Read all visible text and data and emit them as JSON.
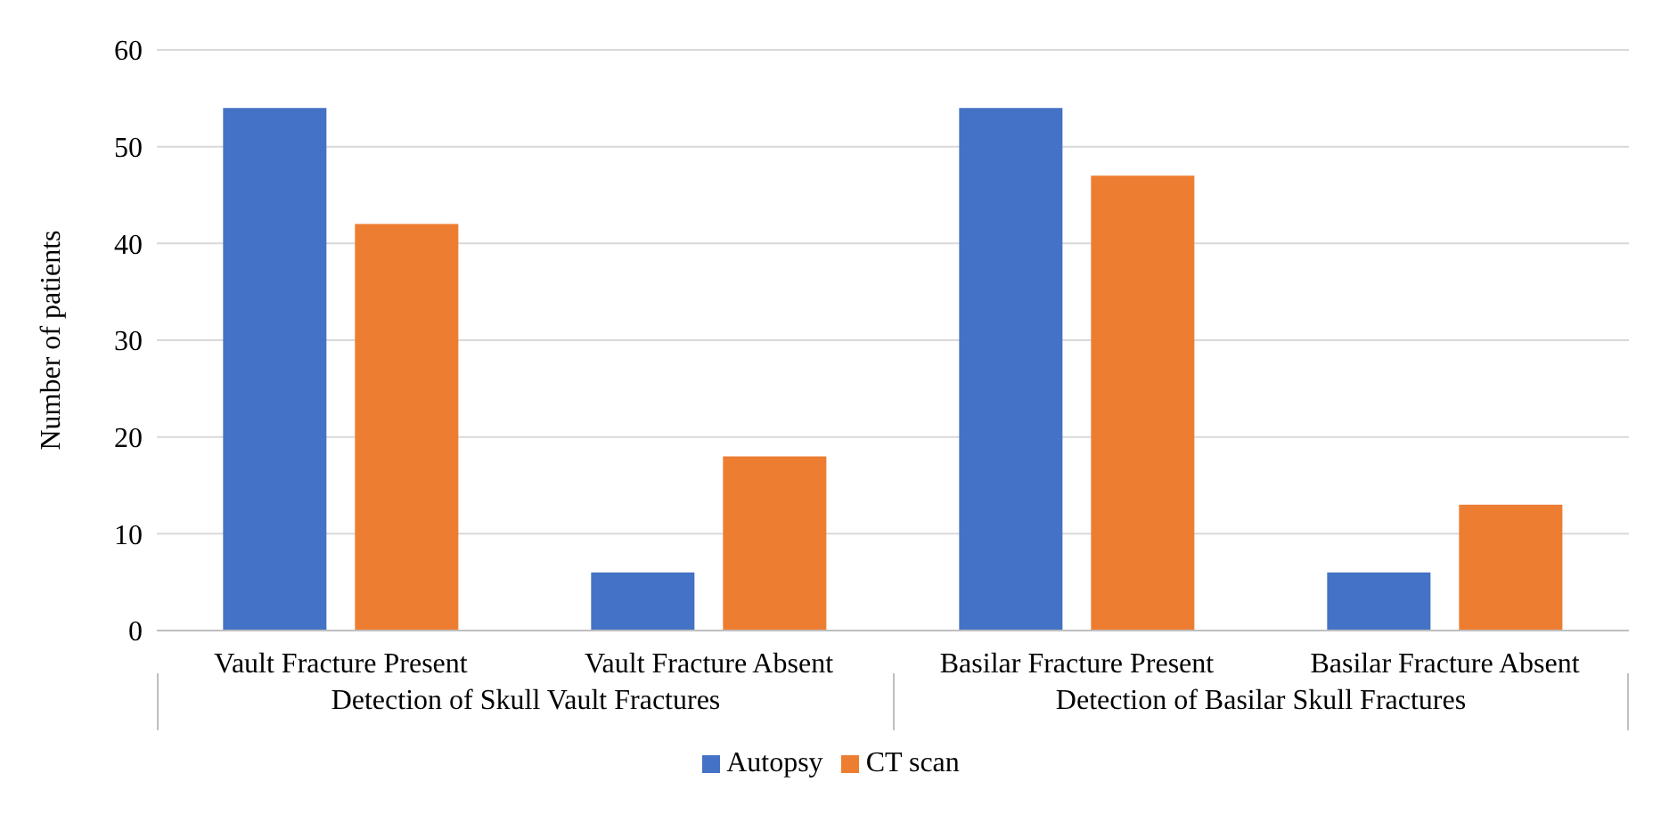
{
  "chart_data": {
    "type": "bar",
    "ylabel": "Number of patients",
    "categories": [
      "Vault Fracture Present",
      "Vault Fracture Absent",
      "Basilar Fracture Present",
      "Basilar Fracture Absent"
    ],
    "series": [
      {
        "name": "Autopsy",
        "color": "#4472c4",
        "values": [
          54,
          6,
          54,
          6
        ]
      },
      {
        "name": "CT scan",
        "color": "#ed7d31",
        "values": [
          42,
          18,
          47,
          13
        ]
      }
    ],
    "annotations": [
      "Detection of Skull Vault Fractures",
      "Detection of Basilar Skull Fractures"
    ],
    "ylim": [
      0,
      60
    ],
    "yticks": [
      0,
      10,
      20,
      30,
      40,
      50,
      60
    ],
    "grid": "y",
    "legend": "bottom"
  }
}
